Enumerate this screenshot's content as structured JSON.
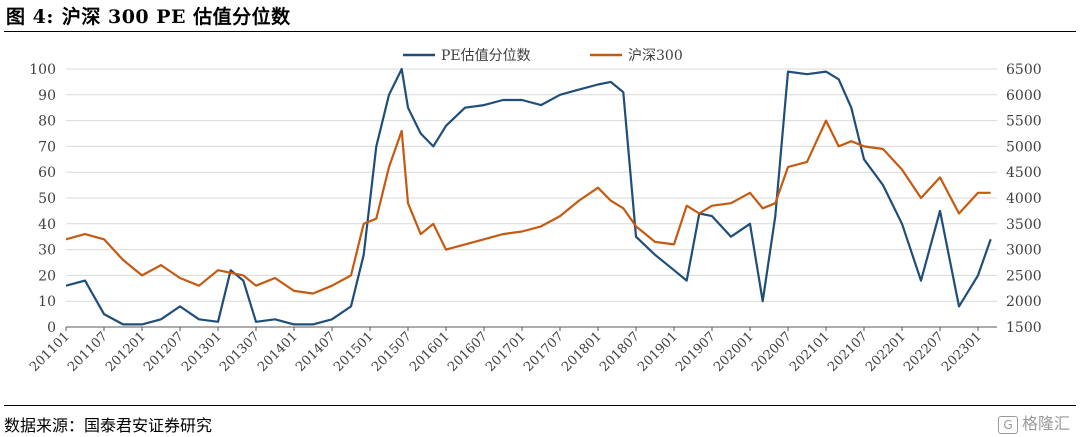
{
  "figure": {
    "number_label": "图 4:",
    "title": "沪深 300 PE 估值分位数"
  },
  "footer": {
    "source": "数据来源：国泰君安证券研究",
    "watermark": "格隆汇",
    "watermark_icon": "G"
  },
  "colors": {
    "pe_series": "#1f4e79",
    "index_series": "#c55a11",
    "grid": "#d9d9d9",
    "axis": "#595959"
  },
  "chart_data": {
    "type": "line",
    "legend_position": "top-center",
    "grid": true,
    "x_ticks": [
      "201101",
      "201107",
      "201201",
      "201207",
      "201301",
      "201307",
      "201401",
      "201407",
      "201501",
      "201507",
      "201601",
      "201607",
      "201701",
      "201707",
      "201801",
      "201807",
      "201901",
      "201907",
      "202001",
      "202007",
      "202101",
      "202107",
      "202201",
      "202207",
      "202301"
    ],
    "y_left": {
      "ticks": [
        0,
        10,
        20,
        30,
        40,
        50,
        60,
        70,
        80,
        90,
        100
      ],
      "lim": [
        0,
        100
      ]
    },
    "y_right": {
      "ticks": [
        1500,
        2000,
        2500,
        3000,
        3500,
        4000,
        4500,
        5000,
        5500,
        6000,
        6500
      ],
      "lim": [
        1500,
        6500
      ]
    },
    "series": [
      {
        "name": "PE估值分位数",
        "axis": "left",
        "x": [
          "201101",
          "201104",
          "201107",
          "201110",
          "201201",
          "201204",
          "201207",
          "201210",
          "201301",
          "201303",
          "201305",
          "201307",
          "201310",
          "201401",
          "201404",
          "201407",
          "201410",
          "201412",
          "201502",
          "201504",
          "201506",
          "201507",
          "201509",
          "201511",
          "201601",
          "201604",
          "201607",
          "201610",
          "201701",
          "201704",
          "201707",
          "201710",
          "201801",
          "201803",
          "201805",
          "201807",
          "201810",
          "201901",
          "201903",
          "201905",
          "201907",
          "201910",
          "202001",
          "202003",
          "202005",
          "202007",
          "202010",
          "202101",
          "202103",
          "202105",
          "202107",
          "202110",
          "202201",
          "202204",
          "202207",
          "202210",
          "202301",
          "202303"
        ],
        "values": [
          16,
          18,
          5,
          1,
          1,
          3,
          8,
          3,
          2,
          22,
          18,
          2,
          3,
          1,
          1,
          3,
          8,
          28,
          70,
          90,
          100,
          85,
          75,
          70,
          78,
          85,
          86,
          88,
          88,
          86,
          90,
          92,
          94,
          95,
          91,
          35,
          28,
          22,
          18,
          44,
          43,
          35,
          40,
          10,
          43,
          99,
          98,
          99,
          96,
          85,
          65,
          55,
          40,
          18,
          45,
          8,
          20,
          34
        ]
      },
      {
        "name": "沪深300",
        "axis": "right",
        "x": [
          "201101",
          "201104",
          "201107",
          "201110",
          "201201",
          "201204",
          "201207",
          "201210",
          "201301",
          "201303",
          "201305",
          "201307",
          "201310",
          "201401",
          "201404",
          "201407",
          "201410",
          "201412",
          "201502",
          "201504",
          "201506",
          "201507",
          "201509",
          "201511",
          "201601",
          "201604",
          "201607",
          "201610",
          "201701",
          "201704",
          "201707",
          "201710",
          "201801",
          "201803",
          "201805",
          "201807",
          "201810",
          "201901",
          "201903",
          "201905",
          "201907",
          "201910",
          "202001",
          "202003",
          "202005",
          "202007",
          "202010",
          "202101",
          "202103",
          "202105",
          "202107",
          "202110",
          "202201",
          "202204",
          "202207",
          "202210",
          "202301",
          "202303"
        ],
        "values": [
          3200,
          3300,
          3200,
          2800,
          2500,
          2700,
          2450,
          2300,
          2600,
          2550,
          2500,
          2300,
          2450,
          2200,
          2150,
          2300,
          2500,
          3500,
          3600,
          4600,
          5300,
          3900,
          3300,
          3500,
          3000,
          3100,
          3200,
          3300,
          3350,
          3450,
          3650,
          3950,
          4200,
          3950,
          3800,
          3450,
          3150,
          3100,
          3850,
          3700,
          3850,
          3900,
          4100,
          3800,
          3900,
          4600,
          4700,
          5500,
          5000,
          5100,
          5000,
          4950,
          4550,
          4000,
          4400,
          3700,
          4100,
          4100
        ]
      }
    ]
  }
}
